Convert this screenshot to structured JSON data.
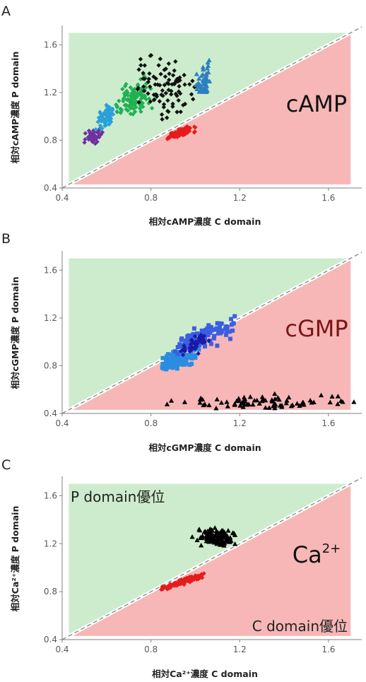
{
  "colors": {
    "green_region": "#cdeccd",
    "red_region": "#f7b7b7",
    "axis": "#7f7f7f",
    "diagonal": "#8c8c8c",
    "text_red": "#7a1616"
  },
  "chart_data": [
    {
      "type": "scatter",
      "panel_label": "A",
      "xlabel": "相対cAMP濃度 C domain",
      "ylabel": "相対cAMP濃度 P domain",
      "annotation": "cAMP",
      "xlim": [
        0.4,
        1.75
      ],
      "ylim": [
        0.4,
        1.75
      ],
      "xticks": [
        "0.4",
        "0.8",
        "1.2",
        "1.6"
      ],
      "yticks": [
        "0.4",
        "0.8",
        "1.2",
        "1.6"
      ],
      "grid": false,
      "series": [
        {
          "color": "#7030a0",
          "marker": "diamond",
          "cx": 0.54,
          "cy": 0.84,
          "sx": 0.022,
          "sy": 0.035,
          "rho": 0.4,
          "n": 45,
          "xr": [
            0.49,
            0.59
          ],
          "yr": [
            0.77,
            0.92
          ]
        },
        {
          "color": "#2aa0d8",
          "marker": "diamond",
          "cx": 0.6,
          "cy": 1.0,
          "sx": 0.025,
          "sy": 0.06,
          "rho": 0.75,
          "n": 60,
          "xr": [
            0.55,
            0.66
          ],
          "yr": [
            0.88,
            1.1
          ]
        },
        {
          "color": "#20b050",
          "marker": "diamond",
          "cx": 0.72,
          "cy": 1.14,
          "sx": 0.04,
          "sy": 0.07,
          "rho": 0.4,
          "n": 110,
          "xr": [
            0.63,
            0.83
          ],
          "yr": [
            0.98,
            1.36
          ]
        },
        {
          "color": "#111111",
          "marker": "diamond",
          "cx": 0.87,
          "cy": 1.25,
          "sx": 0.07,
          "sy": 0.13,
          "rho": 0.2,
          "n": 90,
          "xr": [
            0.72,
            1.0
          ],
          "yr": [
            0.96,
            1.72
          ]
        },
        {
          "color": "#2e7fc0",
          "marker": "triangle",
          "cx": 1.04,
          "cy": 1.28,
          "sx": 0.018,
          "sy": 0.07,
          "rho": 0.5,
          "n": 55,
          "xr": [
            0.99,
            1.07
          ],
          "yr": [
            1.2,
            1.6
          ]
        },
        {
          "color": "#e51c1c",
          "marker": "diamond",
          "cx": 0.93,
          "cy": 0.86,
          "sx": 0.035,
          "sy": 0.03,
          "rho": 0.8,
          "n": 90,
          "xr": [
            0.86,
            1.0
          ],
          "yr": [
            0.81,
            0.93
          ]
        }
      ]
    },
    {
      "type": "scatter",
      "panel_label": "B",
      "xlabel": "相対cGMP濃度 C domain",
      "ylabel": "相対cGMP濃度 P domain",
      "annotation": "cGMP",
      "xlim": [
        0.4,
        1.75
      ],
      "ylim": [
        0.4,
        1.75
      ],
      "xticks": [
        "0.4",
        "0.8",
        "1.2",
        "1.6"
      ],
      "yticks": [
        "0.4",
        "0.8",
        "1.2",
        "1.6"
      ],
      "grid": false,
      "series": [
        {
          "color": "#2a8de0",
          "marker": "square",
          "cx": 0.92,
          "cy": 0.84,
          "sx": 0.04,
          "sy": 0.045,
          "rho": 0.5,
          "n": 110,
          "xr": [
            0.85,
            1.02
          ],
          "yr": [
            0.76,
            0.96
          ]
        },
        {
          "color": "#3b5fe0",
          "marker": "square",
          "cx": 1.03,
          "cy": 1.04,
          "sx": 0.07,
          "sy": 0.07,
          "rho": 0.8,
          "n": 110,
          "xr": [
            0.9,
            1.18
          ],
          "yr": [
            0.86,
            1.22
          ]
        },
        {
          "color": "#1a1aa8",
          "marker": "diamond",
          "cx": 1.0,
          "cy": 0.98,
          "sx": 0.04,
          "sy": 0.05,
          "rho": 0.8,
          "n": 45,
          "xr": [
            0.92,
            1.08
          ],
          "yr": [
            0.88,
            1.08
          ]
        },
        {
          "color": "#000000",
          "marker": "triangle",
          "cx": 1.3,
          "cy": 0.49,
          "sx": 0.2,
          "sy": 0.035,
          "rho": 0.0,
          "n": 80,
          "xr": [
            0.85,
            1.72
          ],
          "yr": [
            0.44,
            0.57
          ]
        }
      ]
    },
    {
      "type": "scatter",
      "panel_label": "C",
      "xlabel": "相対Ca²⁺濃度 C domain",
      "ylabel": "相対Ca²⁺濃度 P domain",
      "annotation": "Ca",
      "annotation_sup": "2+",
      "region_upper": "P domain優位",
      "region_lower": "C domain優位",
      "xlim": [
        0.4,
        1.75
      ],
      "ylim": [
        0.4,
        1.75
      ],
      "xticks": [
        "0.4",
        "0.8",
        "1.2",
        "1.6"
      ],
      "yticks": [
        "0.4",
        "0.8",
        "1.2",
        "1.6"
      ],
      "grid": false,
      "series": [
        {
          "color": "#000000",
          "marker": "triangle",
          "cx": 1.1,
          "cy": 1.25,
          "sx": 0.04,
          "sy": 0.035,
          "rho": -0.2,
          "n": 130,
          "xr": [
            0.98,
            1.18
          ],
          "yr": [
            1.18,
            1.4
          ]
        },
        {
          "color": "#e51c1c",
          "marker": "diamond",
          "cx": 0.94,
          "cy": 0.88,
          "sx": 0.06,
          "sy": 0.04,
          "rho": 0.95,
          "n": 110,
          "xr": [
            0.84,
            1.04
          ],
          "yr": [
            0.8,
            0.97
          ]
        }
      ]
    }
  ]
}
